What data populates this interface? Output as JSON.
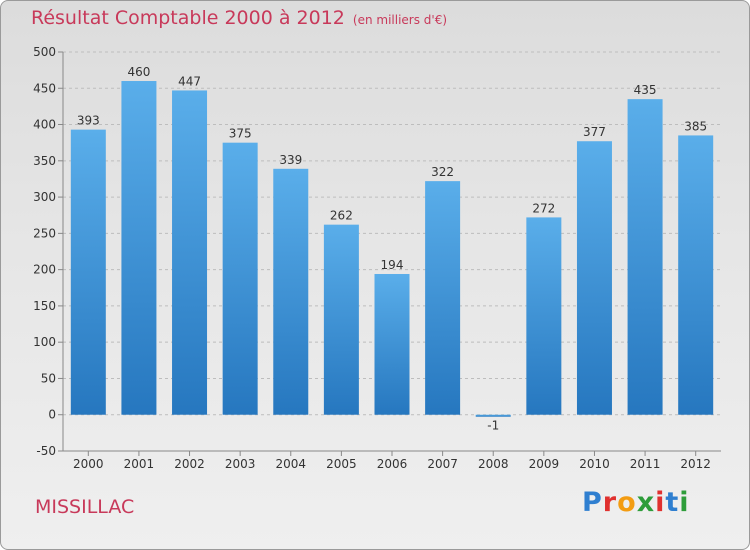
{
  "title": {
    "main": "Résultat Comptable 2000 à 2012",
    "subtitle": "(en milliers d'€)"
  },
  "commune": "MISSILLAC",
  "brand": {
    "letters": [
      "P",
      "r",
      "o",
      "x",
      "i",
      "t",
      "i"
    ],
    "colors": [
      "#2f7fd0",
      "#e0312f",
      "#f39c12",
      "#2e9d3a",
      "#e0312f",
      "#2f7fd0",
      "#2e9d3a"
    ]
  },
  "colors": {
    "bar_top": "#5aaeea",
    "bar_bottom": "#2677bf",
    "title": "#c8395a",
    "axis_text": "#333333",
    "grid": "#bdbdbd"
  },
  "chart_data": {
    "type": "bar",
    "title": "Résultat Comptable 2000 à 2012",
    "unit": "en milliers d'€",
    "xlabel": "",
    "ylabel": "",
    "categories": [
      "2000",
      "2001",
      "2002",
      "2003",
      "2004",
      "2005",
      "2006",
      "2007",
      "2008",
      "2009",
      "2010",
      "2011",
      "2012"
    ],
    "values": [
      393,
      460,
      447,
      375,
      339,
      262,
      194,
      322,
      -1,
      272,
      377,
      435,
      385
    ],
    "labels": [
      "393",
      "460",
      "447",
      "375",
      "339",
      "262",
      "194",
      "322",
      "-1",
      "272",
      "377",
      "435",
      "385"
    ],
    "ylim": [
      -50,
      500
    ],
    "yticks": [
      -50,
      0,
      50,
      100,
      150,
      200,
      250,
      300,
      350,
      400,
      450,
      500
    ],
    "grid": true,
    "grid_style": "dashed horizontal"
  }
}
